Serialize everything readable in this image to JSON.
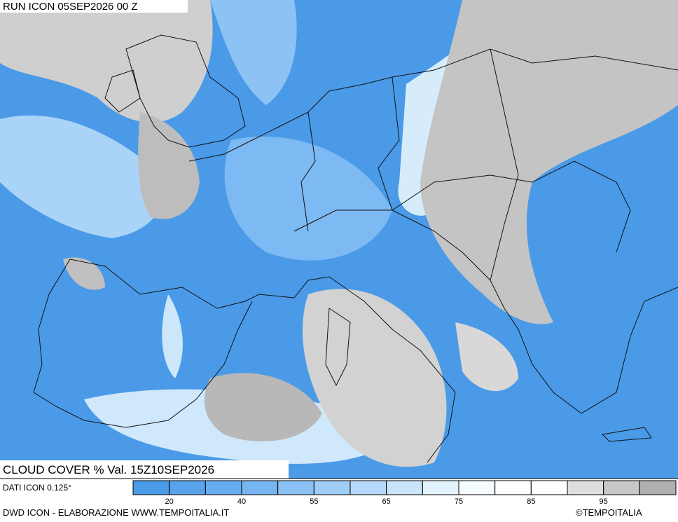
{
  "header": {
    "run": "RUN ICON 05SEP2026 00 Z",
    "variable": "CLOUD COVER % Val. 15Z10SEP2026"
  },
  "legend": {
    "source": "DATI ICON 0.125°",
    "colors": [
      "#4a9be8",
      "#58a3ec",
      "#67acef",
      "#78b6f1",
      "#8bc1f4",
      "#9fcdf6",
      "#b4d8f8",
      "#cae5fa",
      "#e2f3fd",
      "#f4fcff",
      "#ffffff",
      "#ffffff",
      "#dedede",
      "#c8c8c8",
      "#b0b0b0"
    ],
    "labels": [
      20,
      40,
      55,
      65,
      75,
      85,
      95
    ]
  },
  "footer": {
    "credit": "DWD ICON - ELABORAZIONE WWW.TEMPOITALIA.IT",
    "copyright": "©TEMPOITALIA"
  }
}
